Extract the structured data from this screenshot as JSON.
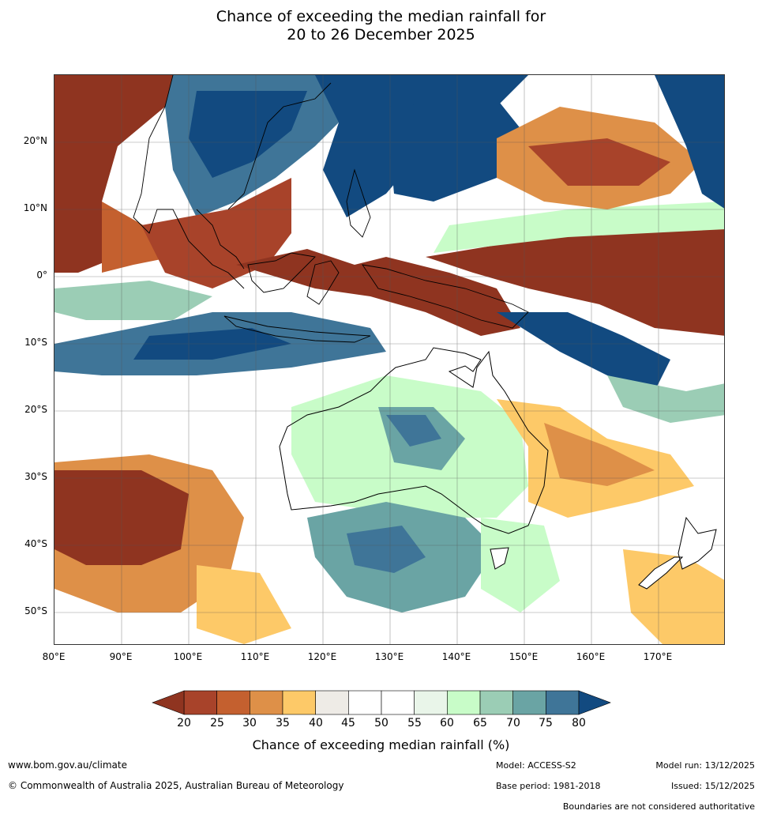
{
  "title": {
    "line1": "Chance of exceeding the median rainfall for",
    "line2": "20 to 26 December 2025"
  },
  "lat_labels": [
    "20°N",
    "10°N",
    "0°",
    "10°S",
    "20°S",
    "30°S",
    "40°S",
    "50°S"
  ],
  "lon_labels": [
    "80°E",
    "90°E",
    "100°E",
    "110°E",
    "120°E",
    "130°E",
    "140°E",
    "150°E",
    "160°E",
    "170°E"
  ],
  "colorbar": {
    "ticks": [
      "20",
      "25",
      "30",
      "35",
      "40",
      "45",
      "50",
      "55",
      "60",
      "65",
      "70",
      "75",
      "80"
    ],
    "colors": [
      "#a8432a",
      "#c4602f",
      "#de9048",
      "#fdc968",
      "#eeebe6",
      "#ffffff",
      "#ffffff",
      "#e9f5e9",
      "#c8fcc8",
      "#9bcdb5",
      "#6aa4a4",
      "#3f7598"
    ],
    "under_color": "#8f3420",
    "over_color": "#124a80",
    "label": "Chance of exceeding median rainfall (%)"
  },
  "footer": {
    "website": "www.bom.gov.au/climate",
    "copyright": "© Commonwealth of Australia 2025, Australian Bureau of Meteorology",
    "model": "Model: ACCESS-S2",
    "base_period": "Base period: 1981-2018",
    "model_run": "Model run: 13/12/2025",
    "issued": "Issued: 15/12/2025",
    "boundaries": "Boundaries are not considered authoritative"
  }
}
